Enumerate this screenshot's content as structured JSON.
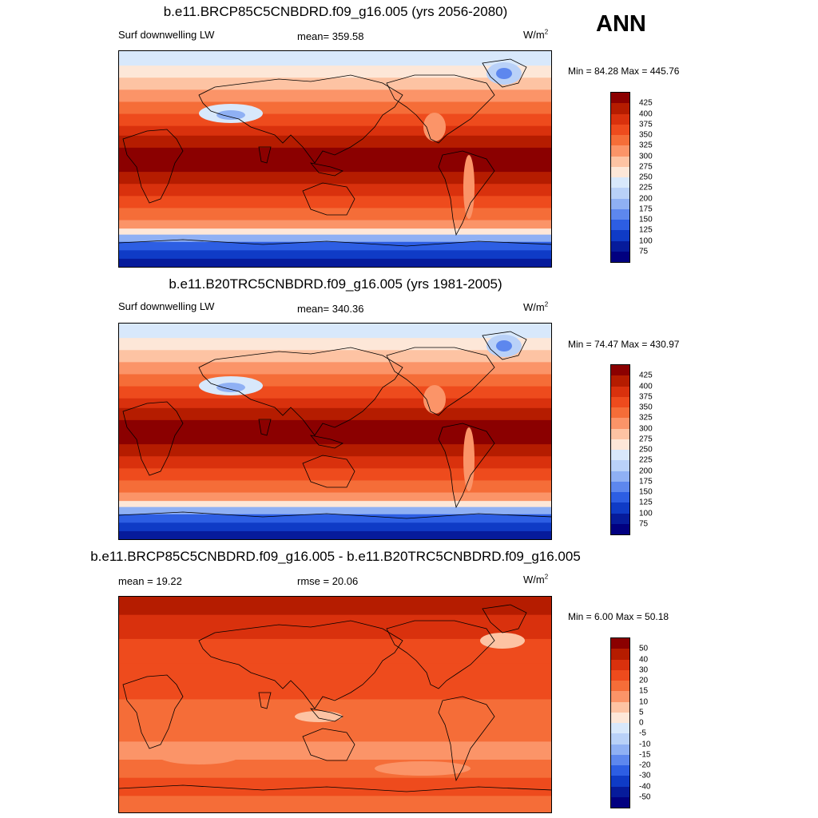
{
  "season": "ANN",
  "units": "W/m",
  "units_exp": "2",
  "panels": [
    {
      "title": "b.e11.BRCP85C5CNBDRD.f09_g16.005 (yrs 2056-2080)",
      "left": "Surf downwelling LW",
      "middle": "mean= 359.58",
      "minmax": "Min =  84.28 Max = 445.76",
      "kind": "abs",
      "levels": [
        "425",
        "400",
        "375",
        "350",
        "325",
        "300",
        "275",
        "250",
        "225",
        "200",
        "175",
        "150",
        "125",
        "100",
        "75"
      ],
      "colors": [
        "#8b0000",
        "#b51c00",
        "#d9310d",
        "#ee4b1d",
        "#f56d38",
        "#fb9468",
        "#fdc3a3",
        "#fde7d8",
        "#d8e8fb",
        "#b9d1f8",
        "#8fb0f4",
        "#5d87ee",
        "#2d5ee3",
        "#0f3bc6",
        "#061b9b",
        "#010080"
      ]
    },
    {
      "title": "b.e11.B20TRC5CNBDRD.f09_g16.005 (yrs 1981-2005)",
      "left": "Surf downwelling LW",
      "middle": "mean= 340.36",
      "minmax": "Min =  74.47 Max = 430.97",
      "kind": "abs",
      "levels": [
        "425",
        "400",
        "375",
        "350",
        "325",
        "300",
        "275",
        "250",
        "225",
        "200",
        "175",
        "150",
        "125",
        "100",
        "75"
      ],
      "colors": [
        "#8b0000",
        "#b51c00",
        "#d9310d",
        "#ee4b1d",
        "#f56d38",
        "#fb9468",
        "#fdc3a3",
        "#fde7d8",
        "#d8e8fb",
        "#b9d1f8",
        "#8fb0f4",
        "#5d87ee",
        "#2d5ee3",
        "#0f3bc6",
        "#061b9b",
        "#010080"
      ]
    },
    {
      "title": "b.e11.BRCP85C5CNBDRD.f09_g16.005 - b.e11.B20TRC5CNBDRD.f09_g16.005",
      "left": "mean =  19.22",
      "middle": "rmse =  20.06",
      "minmax": "Min =   6.00 Max =  50.18",
      "kind": "diff",
      "levels": [
        "50",
        "40",
        "30",
        "20",
        "15",
        "10",
        "5",
        "0",
        "-5",
        "-10",
        "-15",
        "-20",
        "-30",
        "-40",
        "-50"
      ],
      "colors": [
        "#8b0000",
        "#b51c00",
        "#d9310d",
        "#ee4b1d",
        "#f56d38",
        "#fb9468",
        "#fdc3a3",
        "#fde7d8",
        "#d8e8fb",
        "#b9d1f8",
        "#8fb0f4",
        "#5d87ee",
        "#2d5ee3",
        "#0f3bc6",
        "#061b9b",
        "#010080"
      ]
    }
  ]
}
